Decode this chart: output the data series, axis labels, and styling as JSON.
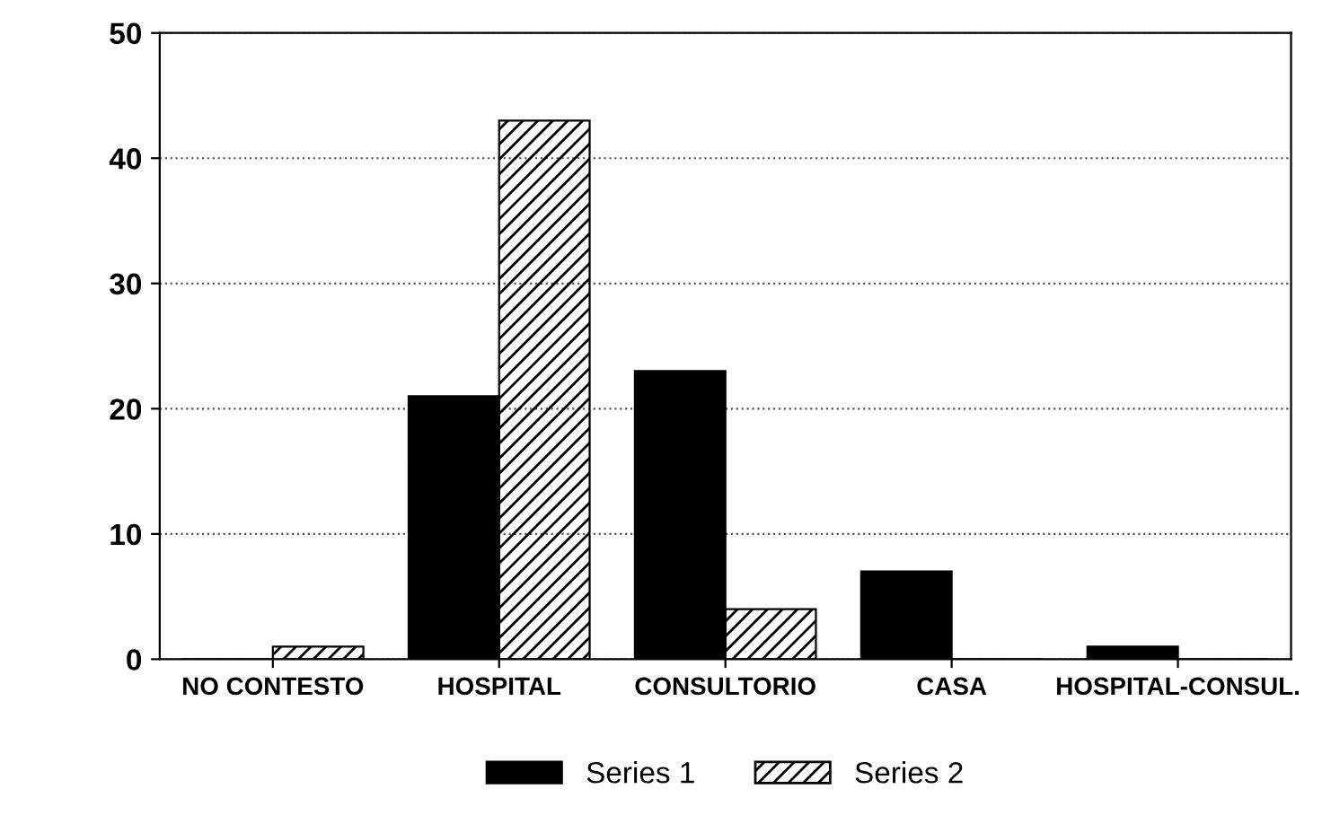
{
  "chart_data": {
    "type": "bar",
    "categories": [
      "NO CONTESTO",
      "HOSPITAL",
      "CONSULTORIO",
      "CASA",
      "HOSPITAL-CONSUL."
    ],
    "series": [
      {
        "name": "Series 1",
        "color": "#000000",
        "values": [
          0,
          21,
          23,
          7,
          1
        ]
      },
      {
        "name": "Series 2",
        "color": "#000000",
        "values": [
          1,
          43,
          4,
          0,
          0
        ]
      }
    ],
    "ylim": [
      0,
      50
    ],
    "yticks": [
      0,
      10,
      20,
      30,
      40,
      50
    ],
    "grid": "y",
    "legend": "bottom"
  }
}
